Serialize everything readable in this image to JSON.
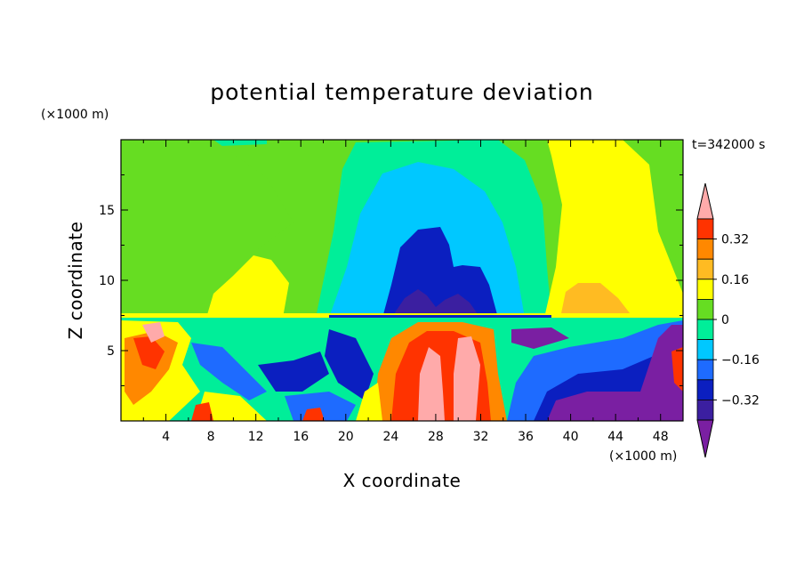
{
  "chart_data": {
    "type": "heatmap",
    "title": "potential temperature deviation",
    "xlabel": "X coordinate",
    "ylabel": "Z coordinate",
    "x_unit": "(×1000 m)",
    "y_unit": "(×1000 m)",
    "time_label": "t=342000 s",
    "xlim": [
      0,
      50
    ],
    "ylim": [
      0,
      20
    ],
    "x_ticks": [
      "4",
      "8",
      "12",
      "16",
      "20",
      "24",
      "28",
      "32",
      "36",
      "40",
      "44",
      "48"
    ],
    "y_ticks": [
      "5",
      "10",
      "15"
    ],
    "colorbar": {
      "levels": [
        -0.48,
        -0.4,
        -0.32,
        -0.24,
        -0.16,
        -0.08,
        0,
        0.08,
        0.16,
        0.24,
        0.32,
        0.4
      ],
      "tick_labels": [
        "0.32",
        "0.16",
        "0",
        "−0.16",
        "−0.32"
      ],
      "colors": [
        "#7a1fa2",
        "#3b1fa0",
        "#0b1fc0",
        "#1e6bff",
        "#00c8ff",
        "#00ee99",
        "#66dd22",
        "#ffff00",
        "#ffbb22",
        "#ff8800",
        "#ff3300",
        "#ffaaaa"
      ],
      "extend": "both"
    },
    "grid": false,
    "layers": [
      {
        "region": "stratosphere z>7.5km, x 0-17",
        "value": 0.04
      },
      {
        "region": "stratosphere z>7.5km, x 8-15 (yellow lobe)",
        "value": 0.1
      },
      {
        "region": "stratosphere z>7.5km, x 18-37 (cold dome)",
        "value": -0.1
      },
      {
        "region": "stratosphere core x 24-33, z 7.5-13.5",
        "value": -0.25
      },
      {
        "region": "stratosphere x 37-50 (warm column)",
        "value": 0.1
      },
      {
        "region": "stratosphere x 40-44, z 7.5-10 (orange)",
        "value": 0.18
      },
      {
        "region": "troposphere x 23-35 (warm plumes)",
        "value": 0.35
      },
      {
        "region": "troposphere x 38-50 (cold pool)",
        "value": -0.45
      }
    ]
  }
}
